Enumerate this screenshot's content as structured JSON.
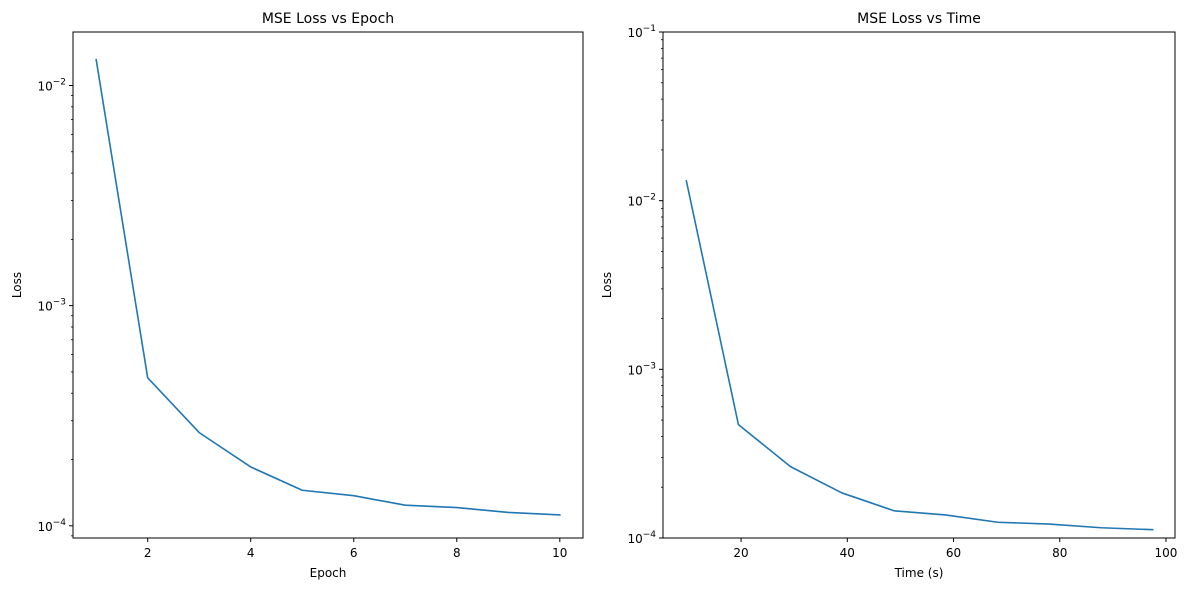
{
  "chart_data": [
    {
      "type": "line",
      "title": "MSE Loss vs Epoch",
      "xlabel": "Epoch",
      "ylabel": "Loss",
      "yscale": "log",
      "xlim": [
        0.55,
        10.45
      ],
      "ylim": [
        8.8e-05,
        0.0175
      ],
      "xticks": [
        2,
        4,
        6,
        8,
        10
      ],
      "xtick_labels": [
        "2",
        "4",
        "6",
        "8",
        "10"
      ],
      "yticks": [
        0.0001,
        0.001,
        0.01
      ],
      "ytick_labels": [
        {
          "base": "10",
          "exp": "−4"
        },
        {
          "base": "10",
          "exp": "−3"
        },
        {
          "base": "10",
          "exp": "−2"
        }
      ],
      "grid": false,
      "color": "#1f77b4",
      "x": [
        1,
        2,
        3,
        4,
        5,
        6,
        7,
        8,
        9,
        10
      ],
      "y": [
        0.0131,
        0.00047,
        0.000265,
        0.000185,
        0.000145,
        0.000137,
        0.000124,
        0.000121,
        0.000115,
        0.000112
      ]
    },
    {
      "type": "line",
      "title": "MSE Loss vs Time",
      "xlabel": "Time (s)",
      "ylabel": "Loss",
      "yscale": "log",
      "xlim": [
        5.3,
        101.7
      ],
      "ylim": [
        0.0001,
        0.1
      ],
      "xticks": [
        20,
        40,
        60,
        80,
        100
      ],
      "xtick_labels": [
        "20",
        "40",
        "60",
        "80",
        "100"
      ],
      "yticks": [
        0.0001,
        0.001,
        0.01,
        0.1
      ],
      "ytick_labels": [
        {
          "base": "10",
          "exp": "−4"
        },
        {
          "base": "10",
          "exp": "−3"
        },
        {
          "base": "10",
          "exp": "−2"
        },
        {
          "base": "10",
          "exp": "−1"
        }
      ],
      "grid": false,
      "color": "#1f77b4",
      "x": [
        9.7,
        19.5,
        29.3,
        39.0,
        48.8,
        58.5,
        68.3,
        78.0,
        87.8,
        97.5
      ],
      "y": [
        0.0131,
        0.00047,
        0.000265,
        0.000185,
        0.000145,
        0.000137,
        0.000124,
        0.000121,
        0.000115,
        0.000112
      ]
    }
  ]
}
